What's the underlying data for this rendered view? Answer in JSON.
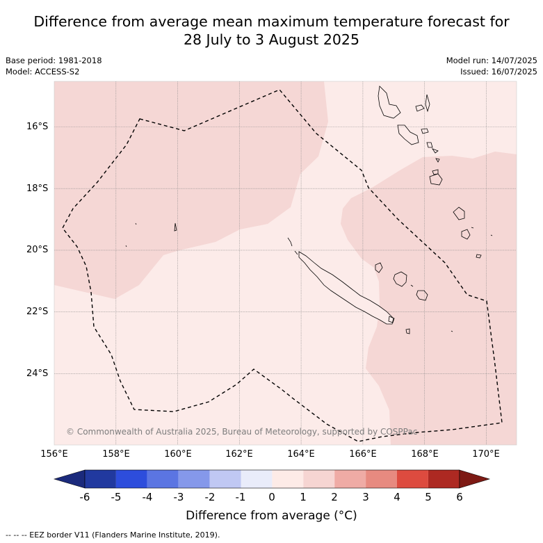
{
  "title": {
    "line1": "Difference from average mean maximum temperature forecast for",
    "line2": "28 July to 3 August 2025"
  },
  "meta": {
    "base_period": "Base period: 1981-2018",
    "model": "Model: ACCESS-S2",
    "model_run": "Model run: 14/07/2025",
    "issued": "Issued: 16/07/2025"
  },
  "map": {
    "lat_labels": [
      "16°S",
      "18°S",
      "20°S",
      "22°S",
      "24°S"
    ],
    "lon_labels": [
      "156°E",
      "158°E",
      "160°E",
      "162°E",
      "164°E",
      "166°E",
      "168°E",
      "170°E"
    ],
    "copyright": "© Commonwealth of Australia 2025, Bureau of Meteorology, supported by COSPPac",
    "colors": {
      "anomaly_0_to_1": "#fcebe9",
      "anomaly_1_to_2": "#f5d7d5",
      "coastline": "#000000",
      "eez_border": "#000000",
      "grid": "#888888"
    }
  },
  "colorbar": {
    "ticks": [
      "-6",
      "-5",
      "-4",
      "-3",
      "-2",
      "-1",
      "0",
      "1",
      "2",
      "3",
      "4",
      "5",
      "6"
    ],
    "colors": [
      "#21399f",
      "#2d4ddc",
      "#5b75e2",
      "#8598ea",
      "#c0c8f3",
      "#e9ecfa",
      "#fdebe7",
      "#f6d5d2",
      "#efaba5",
      "#e78a80",
      "#dd4b3f",
      "#ad2922"
    ],
    "low_extend_color": "#1b2a7c",
    "high_extend_color": "#7d1a14",
    "label": "Difference from average (°C)"
  },
  "legend": {
    "eez": "-- -- -- EEZ border V11 (Flanders Marine Institute, 2019)."
  }
}
